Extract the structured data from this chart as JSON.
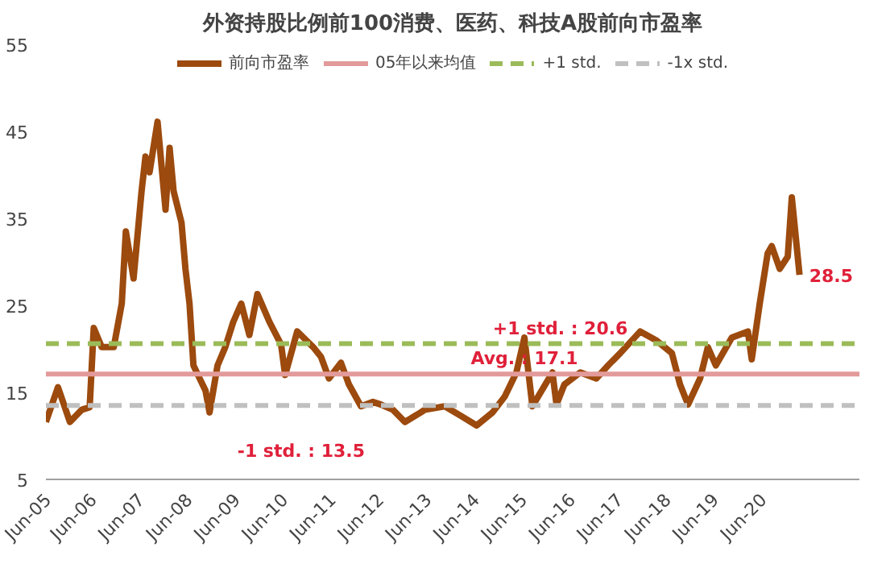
{
  "chart_data": {
    "type": "line",
    "title": "外资持股比例前100消费、医药、科技A股前向市盈率",
    "x": [
      "2005-06",
      "2005-09",
      "2005-12",
      "2006-03",
      "2006-05",
      "2006-06",
      "2006-08",
      "2006-11",
      "2007-01",
      "2007-02",
      "2007-04",
      "2007-06",
      "2007-07",
      "2007-08",
      "2007-10",
      "2007-12",
      "2008-01",
      "2008-02",
      "2008-04",
      "2008-05",
      "2008-06",
      "2008-07",
      "2008-10",
      "2008-11",
      "2009-01",
      "2009-03",
      "2009-05",
      "2009-07",
      "2009-09",
      "2009-11",
      "2010-02",
      "2010-05",
      "2010-06",
      "2010-09",
      "2011-01",
      "2011-03",
      "2011-05",
      "2011-08",
      "2011-10",
      "2012-01",
      "2012-04",
      "2012-06",
      "2012-09",
      "2012-12",
      "2013-04",
      "2013-05",
      "2013-10",
      "2014-02",
      "2014-06",
      "2014-10",
      "2015-01",
      "2015-04",
      "2015-06",
      "2015-08",
      "2016-01",
      "2016-02",
      "2016-04",
      "2016-08",
      "2016-12",
      "2017-03",
      "2017-06",
      "2017-11",
      "2018-03",
      "2018-07",
      "2018-09",
      "2018-11",
      "2019-02",
      "2019-04",
      "2019-06",
      "2019-10",
      "2020-02",
      "2020-03",
      "2020-05",
      "2020-07",
      "2020-08",
      "2020-10",
      "2020-12",
      "2021-01",
      "2021-03"
    ],
    "series": [
      {
        "name": "前向市盈率",
        "color": "#9c4a0e",
        "values": [
          11.6,
          15.6,
          11.6,
          13.0,
          13.3,
          22.4,
          20.2,
          20.2,
          25.2,
          33.5,
          28.1,
          38.1,
          42.1,
          40.3,
          46.1,
          36.0,
          43.1,
          38.1,
          34.5,
          29.2,
          25.2,
          18.1,
          15.2,
          12.7,
          18.1,
          20.2,
          23.1,
          25.2,
          21.6,
          26.3,
          23.1,
          20.5,
          17.0,
          22.0,
          20.2,
          19.1,
          16.6,
          18.4,
          15.9,
          13.4,
          13.9,
          13.6,
          13.0,
          11.6,
          12.7,
          13.0,
          13.4,
          12.3,
          11.2,
          12.7,
          14.5,
          17.3,
          21.3,
          13.4,
          17.3,
          13.6,
          15.9,
          17.3,
          16.6,
          18.1,
          19.5,
          22.0,
          21.0,
          19.5,
          15.9,
          13.6,
          16.6,
          20.2,
          18.1,
          21.3,
          22.0,
          18.8,
          25.2,
          31.0,
          31.8,
          29.2,
          30.6,
          37.4,
          28.5
        ]
      }
    ],
    "xlim": [
      "2005-06",
      "2022-06"
    ],
    "xticks": [
      {
        "value": "2005-06",
        "label": "Jun-05"
      },
      {
        "value": "2006-06",
        "label": "Jun-06"
      },
      {
        "value": "2007-06",
        "label": "Jun-07"
      },
      {
        "value": "2008-06",
        "label": "Jun-08"
      },
      {
        "value": "2009-06",
        "label": "Jun-09"
      },
      {
        "value": "2010-06",
        "label": "Jun-10"
      },
      {
        "value": "2011-06",
        "label": "Jun-11"
      },
      {
        "value": "2012-06",
        "label": "Jun-12"
      },
      {
        "value": "2013-06",
        "label": "Jun-13"
      },
      {
        "value": "2014-06",
        "label": "Jun-14"
      },
      {
        "value": "2015-06",
        "label": "Jun-15"
      },
      {
        "value": "2016-06",
        "label": "Jun-16"
      },
      {
        "value": "2017-06",
        "label": "Jun-17"
      },
      {
        "value": "2018-06",
        "label": "Jun-18"
      },
      {
        "value": "2019-06",
        "label": "Jun-19"
      },
      {
        "value": "2020-06",
        "label": "Jun-20"
      }
    ],
    "ylim": [
      5,
      55
    ],
    "yticks": [
      5,
      15,
      25,
      35,
      45,
      55
    ],
    "ref_lines": [
      {
        "axis": "y",
        "value": 17.1,
        "label": "05年以来均值",
        "color": "#e39a9a",
        "line_style": "solid"
      },
      {
        "axis": "y",
        "value": 20.6,
        "label": "+1 std.",
        "color": "#9bbb59",
        "line_style": "dashed"
      },
      {
        "axis": "y",
        "value": 13.5,
        "label": "-1x std.",
        "color": "#c0c0c0",
        "line_style": "dashed"
      }
    ],
    "annotations": [
      {
        "text": "+1 std. : 20.6",
        "x": "2016-03",
        "y": 20.6
      },
      {
        "text": "Avg. : 17.1",
        "x": "2015-06",
        "y": 17.1
      },
      {
        "text": "-1 std. : 13.5",
        "x": "2010-10",
        "y": 13.5
      },
      {
        "text": "28.5",
        "x": "2021-03",
        "y": 28.5
      }
    ],
    "grid": false,
    "legend": "top",
    "marker": "none",
    "line_style": "solid"
  }
}
